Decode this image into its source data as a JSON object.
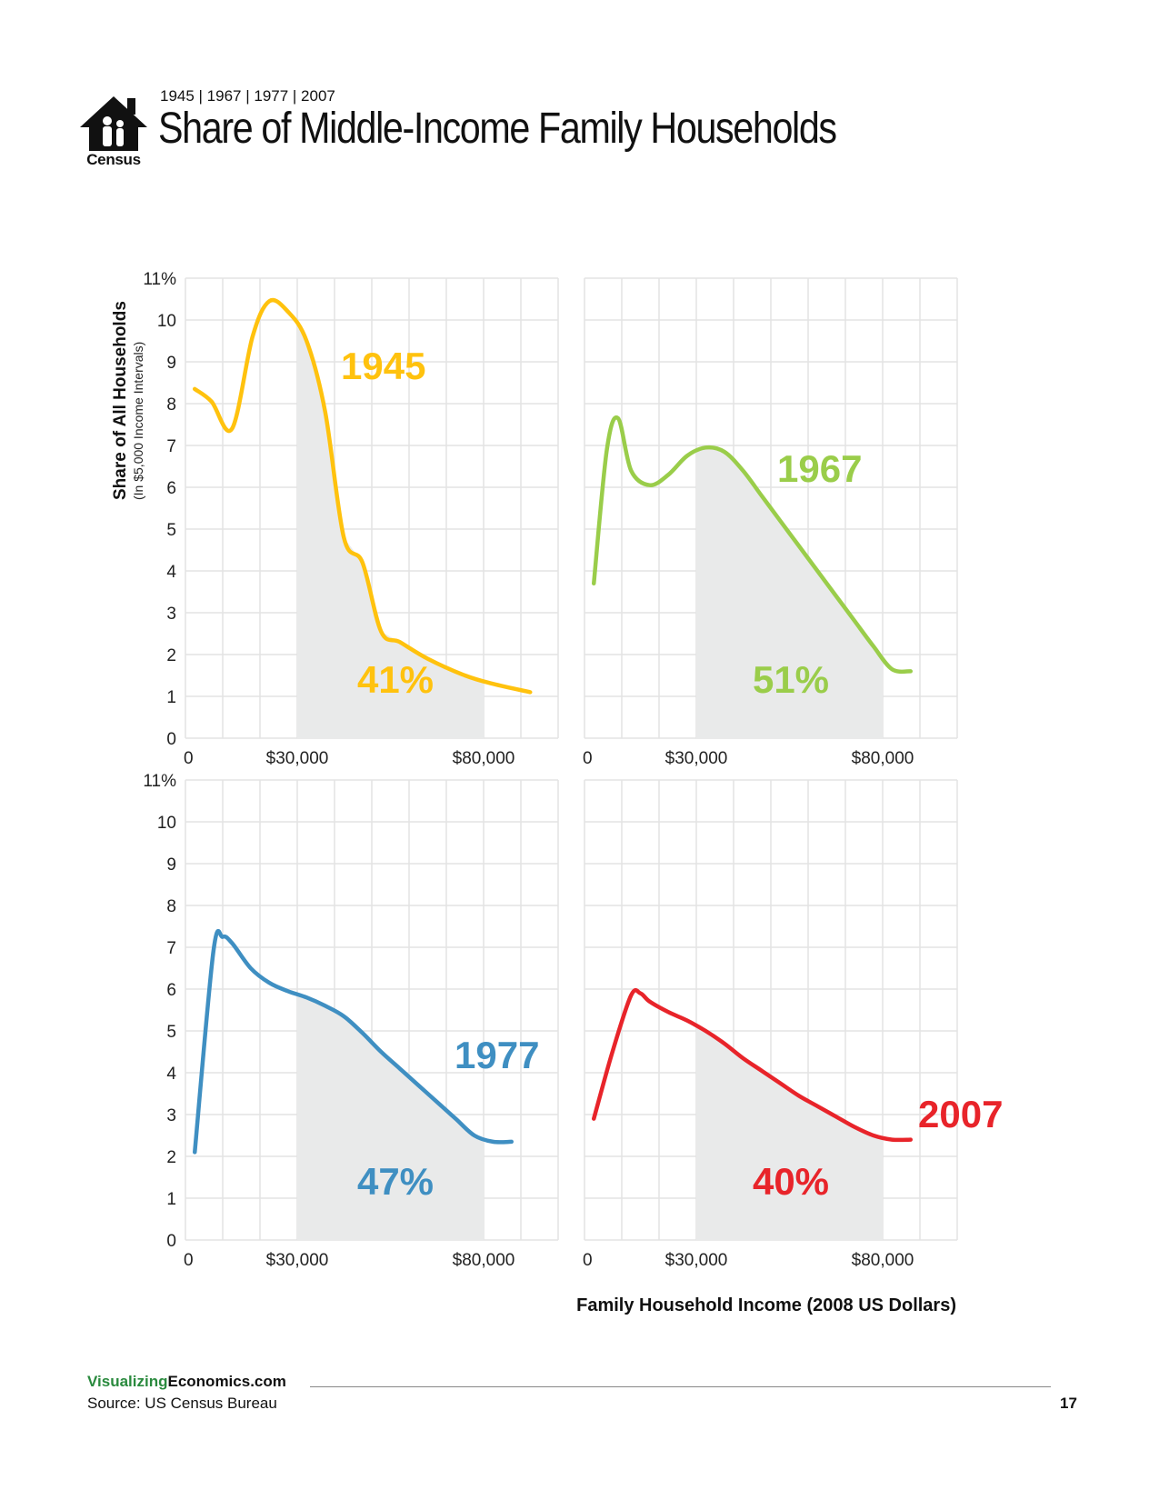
{
  "header": {
    "logo_text": "Census",
    "subtitle": "1945 | 1967 | 1977 | 2007",
    "title": "Share of Middle-Income Family Households"
  },
  "axes": {
    "y_label": "Share of All Households",
    "y_sublabel": "(In $5,000 Income Intervals)",
    "x_label": "Family Household Income (2008 US Dollars)"
  },
  "footer": {
    "brand_green": "Visualizing",
    "brand_black": "Economics.com",
    "source": "Source: US Census Bureau",
    "page_number": "17"
  },
  "chart_data": [
    {
      "type": "line",
      "year_label": "1945",
      "share_label": "41%",
      "color": "#ffc20e",
      "x_ticks": [
        "0",
        "$30,000",
        "$80,000"
      ],
      "y_ticks": [
        "0",
        "1",
        "2",
        "3",
        "4",
        "5",
        "6",
        "7",
        "8",
        "9",
        "10",
        "11%"
      ],
      "ylim": [
        0,
        11
      ],
      "xlim": [
        0,
        100000
      ],
      "shaded_range": [
        30000,
        80000
      ],
      "x": [
        2500,
        7000,
        12500,
        18000,
        22500,
        27500,
        32500,
        37500,
        42500,
        47500,
        52500,
        57500,
        65000,
        75000,
        82500,
        92500
      ],
      "y": [
        8.35,
        8.05,
        7.4,
        9.6,
        10.45,
        10.2,
        9.5,
        7.8,
        4.8,
        4.2,
        2.55,
        2.3,
        1.9,
        1.5,
        1.3,
        1.1
      ]
    },
    {
      "type": "line",
      "year_label": "1967",
      "share_label": "51%",
      "color": "#9acd4a",
      "x_ticks": [
        "0",
        "$30,000",
        "$80,000"
      ],
      "y_ticks": [
        "0",
        "1",
        "2",
        "3",
        "4",
        "5",
        "6",
        "7",
        "8",
        "9",
        "10",
        "11%"
      ],
      "ylim": [
        0,
        11
      ],
      "xlim": [
        0,
        100000
      ],
      "shaded_range": [
        30000,
        80000
      ],
      "x": [
        2500,
        6000,
        9000,
        12500,
        17500,
        22500,
        27500,
        32500,
        37500,
        42500,
        47500,
        52500,
        57500,
        62500,
        67500,
        72500,
        77500,
        82500,
        87500
      ],
      "y": [
        3.7,
        6.9,
        7.65,
        6.4,
        6.05,
        6.3,
        6.75,
        6.95,
        6.85,
        6.4,
        5.8,
        5.2,
        4.6,
        4.0,
        3.4,
        2.8,
        2.2,
        1.65,
        1.6
      ]
    },
    {
      "type": "line",
      "year_label": "1977",
      "share_label": "47%",
      "color": "#3f8fc2",
      "x_ticks": [
        "0",
        "$30,000",
        "$80,000"
      ],
      "y_ticks": [
        "0",
        "1",
        "2",
        "3",
        "4",
        "5",
        "6",
        "7",
        "8",
        "9",
        "10",
        "11%"
      ],
      "ylim": [
        0,
        11
      ],
      "xlim": [
        0,
        100000
      ],
      "shaded_range": [
        30000,
        80000
      ],
      "x": [
        2500,
        7500,
        10000,
        12500,
        17500,
        22500,
        27500,
        32500,
        37500,
        42500,
        47500,
        52500,
        57500,
        62500,
        67500,
        72500,
        77500,
        82500,
        87500
      ],
      "y": [
        2.1,
        6.9,
        7.25,
        7.1,
        6.5,
        6.15,
        5.95,
        5.8,
        5.6,
        5.35,
        4.95,
        4.5,
        4.1,
        3.7,
        3.3,
        2.9,
        2.5,
        2.35,
        2.35
      ]
    },
    {
      "type": "line",
      "year_label": "2007",
      "share_label": "40%",
      "color": "#e8242a",
      "x_ticks": [
        "0",
        "$30,000",
        "$80,000"
      ],
      "y_ticks": [
        "0",
        "1",
        "2",
        "3",
        "4",
        "5",
        "6",
        "7",
        "8",
        "9",
        "10",
        "11%"
      ],
      "ylim": [
        0,
        11
      ],
      "xlim": [
        0,
        100000
      ],
      "shaded_range": [
        30000,
        80000
      ],
      "x": [
        2500,
        7500,
        12500,
        15000,
        17500,
        22500,
        27500,
        32500,
        37500,
        42500,
        47500,
        52500,
        57500,
        62500,
        67500,
        72500,
        77500,
        82500,
        87500
      ],
      "y": [
        2.9,
        4.5,
        5.85,
        5.9,
        5.7,
        5.45,
        5.25,
        5.0,
        4.7,
        4.35,
        4.05,
        3.75,
        3.45,
        3.2,
        2.95,
        2.7,
        2.5,
        2.4,
        2.4
      ]
    }
  ]
}
